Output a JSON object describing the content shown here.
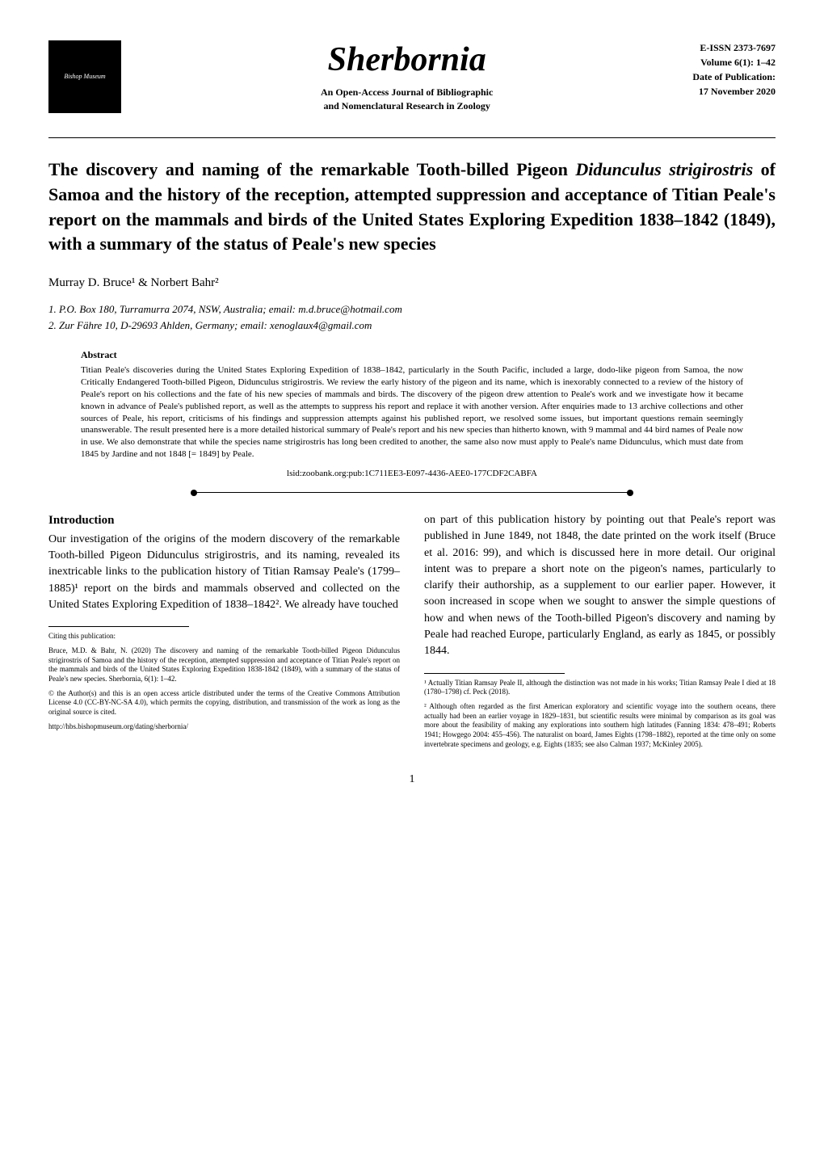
{
  "header": {
    "logo_text": "Bishop Museum",
    "journal_title": "Sherbornia",
    "subtitle_line1": "An Open-Access Journal of Bibliographic",
    "subtitle_line2": "and Nomenclatural Research in Zoology",
    "eissn": "E-ISSN 2373-7697",
    "volume": "Volume 6(1): 1–42",
    "pub_date_label": "Date of Publication:",
    "pub_date": "17 November 2020"
  },
  "article": {
    "title_part1": "The discovery and naming of the remarkable Tooth-billed Pigeon ",
    "title_italic1": "Didunculus strigirostris",
    "title_part2": " of Samoa and the history of the reception, attempted suppression and acceptance of Titian Peale's report on the mammals and birds of the United States Exploring Expedition 1838–1842 (1849), with a summary of the status of Peale's new species",
    "authors": "Murray D. Bruce¹ & Norbert Bahr²",
    "affiliation1": "1. P.O. Box 180, Turramurra 2074, NSW, Australia; email: m.d.bruce@hotmail.com",
    "affiliation2": "2. Zur Fähre 10, D-29693 Ahlden, Germany; email: xenoglaux4@gmail.com"
  },
  "abstract": {
    "heading": "Abstract",
    "text": "Titian Peale's discoveries during the United States Exploring Expedition of 1838–1842, particularly in the South Pacific, included a large, dodo-like pigeon from Samoa, the now Critically Endangered Tooth-billed Pigeon, Didunculus strigirostris. We review the early history of the pigeon and its name, which is inexorably connected to a review of the history of Peale's report on his collections and the fate of his new species of mammals and birds. The discovery of the pigeon drew attention to Peale's work and we investigate how it became known in advance of Peale's published report, as well as the attempts to suppress his report and replace it with another version. After enquiries made to 13 archive collections and other sources of Peale, his report, criticisms of his findings and suppression attempts against his published report, we resolved some issues, but important questions remain seemingly unanswerable. The result presented here is a more detailed historical summary of Peale's report and his new species than hitherto known, with 9 mammal and 44 bird names of Peale now in use. We also demonstrate that while the species name strigirostris has long been credited to another, the same also now must apply to Peale's name Didunculus, which must date from 1845 by Jardine and not 1848 [= 1849] by Peale.",
    "lsid": "lsid:zoobank.org:pub:1C711EE3-E097-4436-AEE0-177CDF2CABFA"
  },
  "body": {
    "intro_heading": "Introduction",
    "left_column": "Our investigation of the origins of the modern discovery of the remarkable Tooth-billed Pigeon Didunculus strigirostris, and its naming, revealed its inextricable links to the publication history of Titian Ramsay Peale's (1799–1885)¹ report on the birds and mammals observed and collected on the United States Exploring Expedition of 1838–1842². We already have touched",
    "right_column": "on part of this publication history by pointing out that Peale's report was published in June 1849, not 1848, the date printed on the work itself (Bruce et al. 2016: 99), and which is discussed here in more detail. Our original intent was to prepare a short note on the pigeon's names, particularly to clarify their authorship, as a supplement to our earlier paper. However, it soon increased in scope when we sought to answer the simple questions of how and when news of the Tooth-billed Pigeon's discovery and naming by Peale had reached Europe, particularly England, as early as 1845, or possibly 1844."
  },
  "citing": {
    "heading": "Citing this publication:",
    "text": "Bruce, M.D. & Bahr, N. (2020) The discovery and naming of the remarkable Tooth-billed Pigeon Didunculus strigirostris of Samoa and the history of the reception, attempted suppression and acceptance of Titian Peale's report on the mammals and birds of the United States Exploring Expedition 1838-1842 (1849), with a summary of the status of Peale's new species. Sherbornia, 6(1): 1–42."
  },
  "license": {
    "text": "© the Author(s) and this is an open access article distributed under the terms of the Creative Commons Attribution License 4.0 (CC-BY-NC-SA 4.0), which permits the copying, distribution, and transmission of the work as long as the original source is cited."
  },
  "url": "http://hbs.bishopmuseum.org/dating/sherbornia/",
  "footnotes": {
    "fn1": "¹ Actually Titian Ramsay Peale II, although the distinction was not made in his works; Titian Ramsay Peale I died at 18 (1780–1798) cf. Peck (2018).",
    "fn2": "² Although often regarded as the first American exploratory and scientific voyage into the southern oceans, there actually had been an earlier voyage in 1829–1831, but scientific results were minimal by comparison as its goal was more about the feasibility of making any explorations into southern high latitudes (Fanning 1834: 478–491; Roberts 1941; Howgego 2004: 455–456). The naturalist on board, James Eights (1798–1882), reported at the time only on some invertebrate specimens and geology, e.g. Eights (1835; see also Calman 1937; McKinley 2005)."
  },
  "page_number": "1",
  "styling": {
    "body_width": 1020,
    "body_padding": "50px 60px",
    "background_color": "#ffffff",
    "text_color": "#000000",
    "journal_title_fontsize": 42,
    "article_title_fontsize": 22,
    "body_fontsize": 14,
    "abstract_fontsize": 11,
    "footnote_fontsize": 9,
    "font_family": "Georgia, 'Times New Roman', serif"
  }
}
